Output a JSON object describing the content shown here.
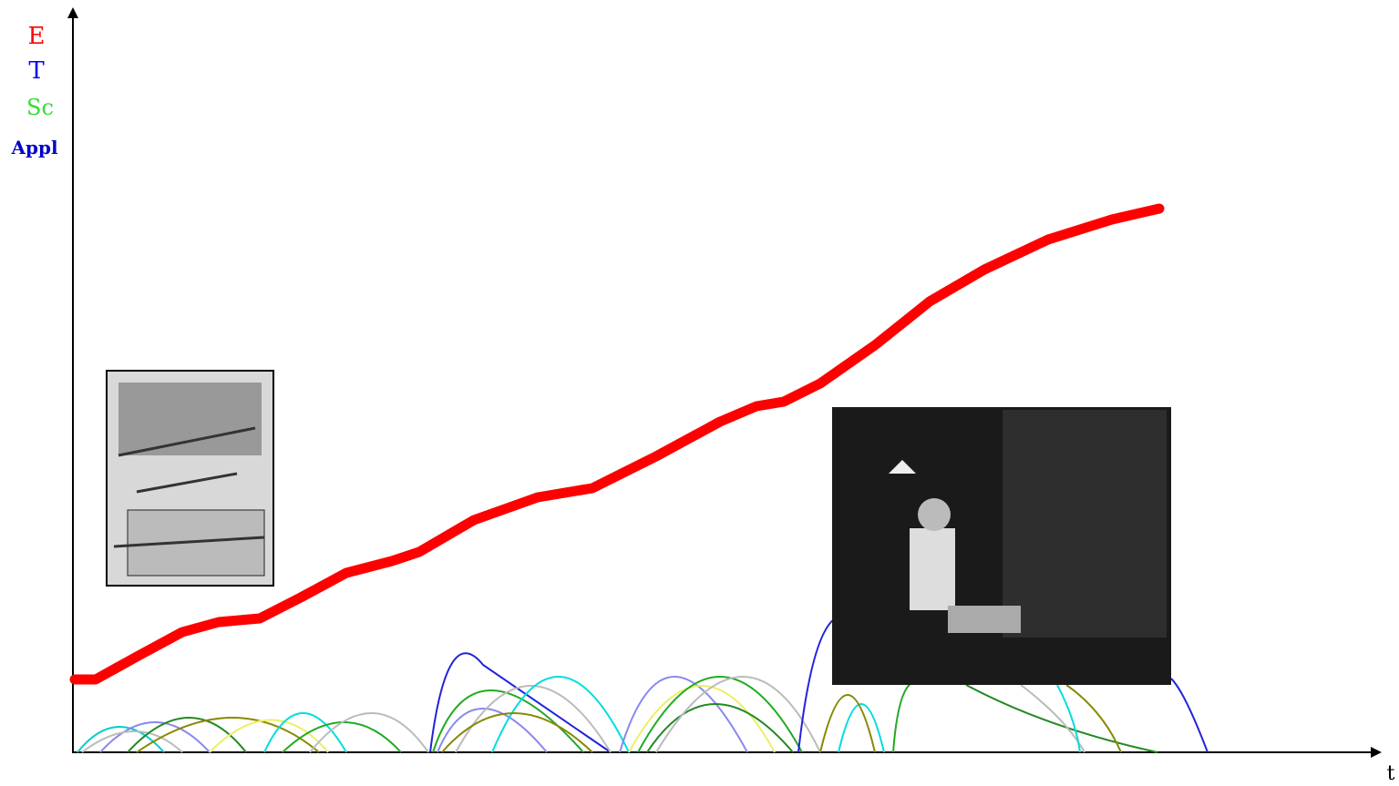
{
  "y_axis_labels": [
    "E",
    "T",
    "Sc",
    "Appl"
  ],
  "x_axis_label": "t"
}
